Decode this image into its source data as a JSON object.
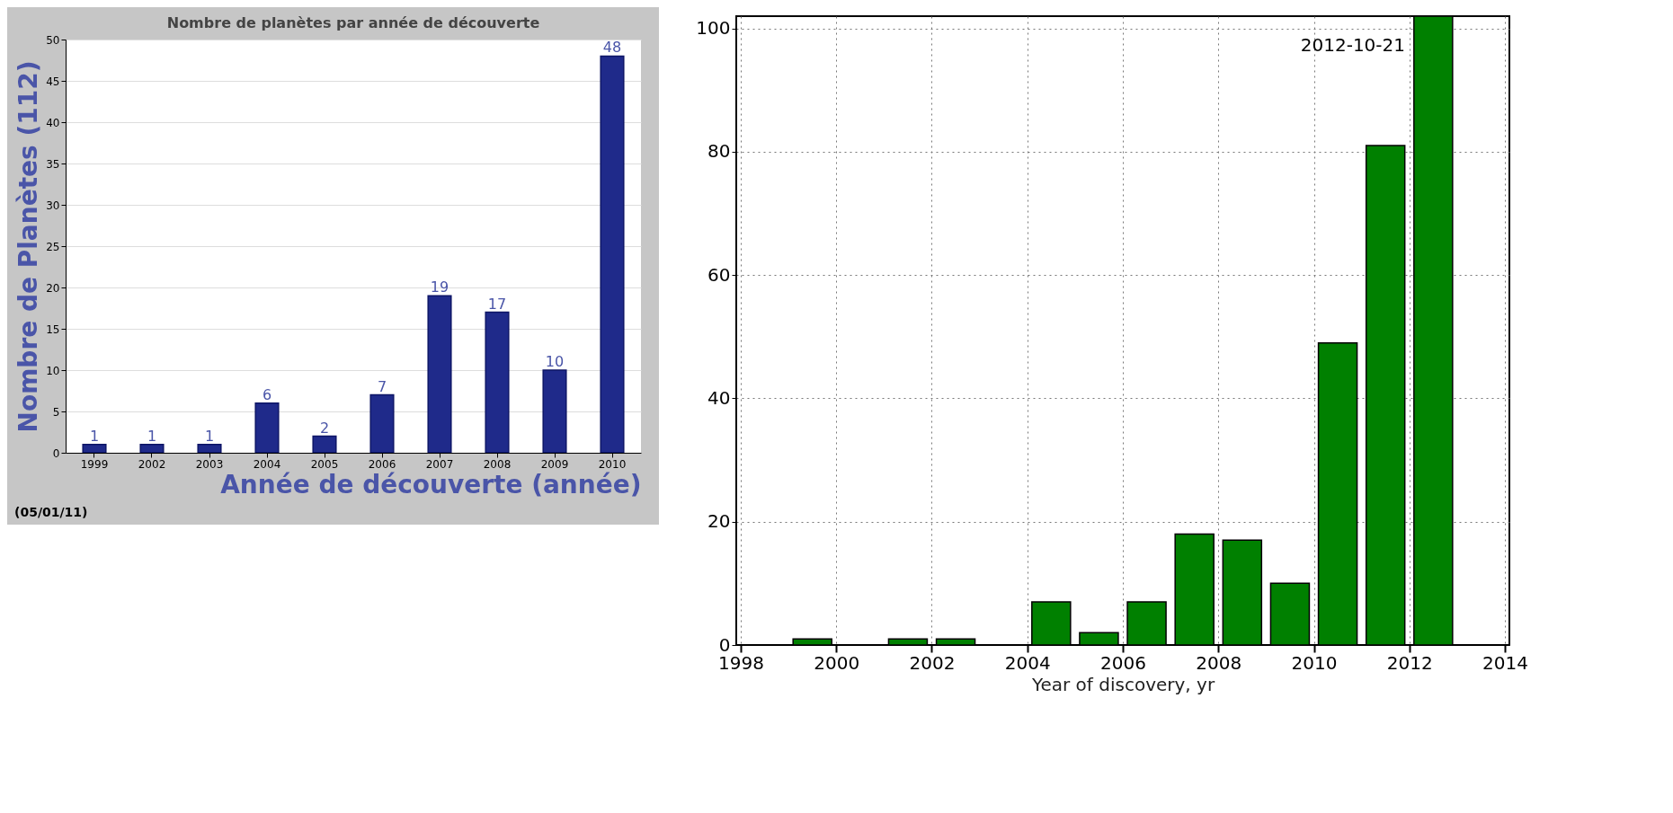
{
  "chart_data": [
    {
      "type": "bar",
      "title": "Nombre de planètes par année de découverte",
      "xlabel": "Année de découverte (année)",
      "ylabel": "Nombre de Planètes (112)",
      "categories": [
        "1999",
        "2002",
        "2003",
        "2004",
        "2005",
        "2006",
        "2007",
        "2008",
        "2009",
        "2010"
      ],
      "values": [
        1,
        1,
        1,
        6,
        2,
        7,
        19,
        17,
        10,
        48
      ],
      "color": "#1f2a8a",
      "ylim": [
        0,
        50
      ],
      "yticks": [
        0,
        5,
        10,
        15,
        20,
        25,
        30,
        35,
        40,
        45,
        50
      ],
      "grid": "y",
      "data_labels": true,
      "annotations": [
        "(05/01/11)"
      ]
    },
    {
      "type": "bar",
      "xlabel": "Year of discovery, yr",
      "x": [
        1999.5,
        2001.5,
        2002.5,
        2004.5,
        2005.5,
        2006.5,
        2007.5,
        2008.5,
        2009.5,
        2010.5,
        2011.5,
        2012.5
      ],
      "values": [
        1,
        1,
        1,
        7,
        2,
        7,
        18,
        17,
        10,
        49,
        81,
        102
      ],
      "color": "#008000",
      "xlim": [
        1998,
        2014
      ],
      "xticks": [
        1998,
        2000,
        2002,
        2004,
        2006,
        2008,
        2010,
        2012,
        2014
      ],
      "ylim": [
        0,
        102
      ],
      "yticks": [
        0,
        20,
        40,
        60,
        80,
        100
      ],
      "grid": true,
      "annotations": [
        "2012-10-21"
      ]
    }
  ]
}
